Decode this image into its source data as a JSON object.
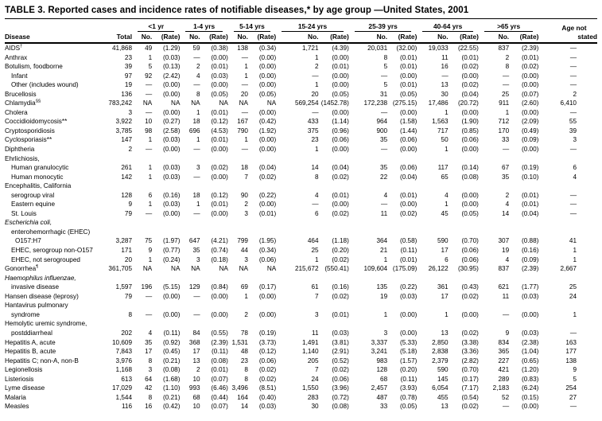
{
  "table": {
    "title": "TABLE 3. Reported cases and incidence rates of notifiable diseases,* by age group —United States, 2001",
    "header": {
      "disease": "Disease",
      "total": "Total",
      "no": "No.",
      "rate": "(Rate)",
      "age_groups": [
        "<1 yr",
        "1-4 yrs",
        "5-14 yrs",
        "15-24 yrs",
        "25-39 yrs",
        "40-64 yrs",
        ">65 yrs"
      ],
      "age_not_line1": "Age not",
      "age_not_line2": "stated"
    },
    "rows": [
      {
        "name": "AIDS",
        "sup": "†",
        "indent": 0,
        "italic": false,
        "cells": [
          "41,868",
          "49",
          "(1.29)",
          "59",
          "(0.38)",
          "138",
          "(0.34)",
          "1,721",
          "(4.39)",
          "20,031",
          "(32.00)",
          "19,033",
          "(22.55)",
          "837",
          "(2.39)",
          "—"
        ]
      },
      {
        "name": "Anthrax",
        "indent": 0,
        "italic": false,
        "cells": [
          "23",
          "1",
          "(0.03)",
          "—",
          "(0.00)",
          "—",
          "(0.00)",
          "1",
          "(0.00)",
          "8",
          "(0.01)",
          "11",
          "(0.01)",
          "2",
          "(0.01)",
          "—"
        ]
      },
      {
        "name": "Botulism, foodborne",
        "indent": 0,
        "italic": false,
        "cells": [
          "39",
          "5",
          "(0.13)",
          "2",
          "(0.01)",
          "1",
          "(0.00)",
          "2",
          "(0.01)",
          "5",
          "(0.01)",
          "16",
          "(0.02)",
          "8",
          "(0.02)",
          "—"
        ]
      },
      {
        "name": "Infant",
        "indent": 1,
        "italic": false,
        "cells": [
          "97",
          "92",
          "(2.42)",
          "4",
          "(0.03)",
          "1",
          "(0.00)",
          "—",
          "(0.00)",
          "—",
          "(0.00)",
          "—",
          "(0.00)",
          "—",
          "(0.00)",
          "—"
        ]
      },
      {
        "name": "Other (includes wound)",
        "indent": 1,
        "italic": false,
        "cells": [
          "19",
          "—",
          "(0.00)",
          "—",
          "(0.00)",
          "—",
          "(0.00)",
          "1",
          "(0.00)",
          "5",
          "(0.01)",
          "13",
          "(0.02)",
          "—",
          "(0.00)",
          "—"
        ]
      },
      {
        "name": "Brucellosis",
        "indent": 0,
        "italic": false,
        "cells": [
          "136",
          "—",
          "(0.00)",
          "8",
          "(0.05)",
          "20",
          "(0.05)",
          "20",
          "(0.05)",
          "31",
          "(0.05)",
          "30",
          "(0.04)",
          "25",
          "(0.07)",
          "2"
        ]
      },
      {
        "name": "Chlamydia",
        "sup": "§§",
        "indent": 0,
        "italic": false,
        "cells": [
          "783,242",
          "NA",
          "NA",
          "NA",
          "NA",
          "NA",
          "NA",
          "569,254",
          "(1452.78)",
          "172,238",
          "(275.15)",
          "17,486",
          "(20.72)",
          "911",
          "(2.60)",
          "6,410"
        ]
      },
      {
        "name": "Cholera",
        "indent": 0,
        "italic": false,
        "cells": [
          "3",
          "—",
          "(0.00)",
          "1",
          "(0.01)",
          "—",
          "(0.00)",
          "—",
          "(0.00)",
          "—",
          "(0.00)",
          "1",
          "(0.00)",
          "1",
          "(0.00)",
          "—"
        ]
      },
      {
        "name": "Coccidioidomycosis**",
        "indent": 0,
        "italic": false,
        "cells": [
          "3,922",
          "10",
          "(0.27)",
          "18",
          "(0.12)",
          "167",
          "(0.42)",
          "433",
          "(1.14)",
          "964",
          "(1.58)",
          "1,563",
          "(1.90)",
          "712",
          "(2.09)",
          "55"
        ]
      },
      {
        "name": "Cryptosporidiosis",
        "indent": 0,
        "italic": false,
        "cells": [
          "3,785",
          "98",
          "(2.58)",
          "696",
          "(4.53)",
          "790",
          "(1.92)",
          "375",
          "(0.96)",
          "900",
          "(1.44)",
          "717",
          "(0.85)",
          "170",
          "(0.49)",
          "39"
        ]
      },
      {
        "name": "Cyclosporiasis**",
        "indent": 0,
        "italic": false,
        "cells": [
          "147",
          "1",
          "(0.03)",
          "1",
          "(0.01)",
          "1",
          "(0.00)",
          "23",
          "(0.06)",
          "35",
          "(0.06)",
          "50",
          "(0.06)",
          "33",
          "(0.09)",
          "3"
        ]
      },
      {
        "name": "Diphtheria",
        "indent": 0,
        "italic": false,
        "cells": [
          "2",
          "—",
          "(0.00)",
          "—",
          "(0.00)",
          "—",
          "(0.00)",
          "1",
          "(0.00)",
          "—",
          "(0.00)",
          "1",
          "(0.00)",
          "—",
          "(0.00)",
          "—"
        ]
      },
      {
        "name": "Ehrlichiosis,",
        "indent": 0,
        "italic": false,
        "cells": []
      },
      {
        "name": "Human granulocytic",
        "indent": 1,
        "italic": false,
        "cells": [
          "261",
          "1",
          "(0.03)",
          "3",
          "(0.02)",
          "18",
          "(0.04)",
          "14",
          "(0.04)",
          "35",
          "(0.06)",
          "117",
          "(0.14)",
          "67",
          "(0.19)",
          "6"
        ]
      },
      {
        "name": "Human  monocytic",
        "indent": 1,
        "italic": false,
        "cells": [
          "142",
          "1",
          "(0.03)",
          "—",
          "(0.00)",
          "7",
          "(0.02)",
          "8",
          "(0.02)",
          "22",
          "(0.04)",
          "65",
          "(0.08)",
          "35",
          "(0.10)",
          "4"
        ]
      },
      {
        "name": "Encephalitis, California",
        "indent": 0,
        "italic": false,
        "cells": []
      },
      {
        "name": "serogroup viral",
        "indent": 1,
        "italic": false,
        "cells": [
          "128",
          "6",
          "(0.16)",
          "18",
          "(0.12)",
          "90",
          "(0.22)",
          "4",
          "(0.01)",
          "4",
          "(0.01)",
          "4",
          "(0.00)",
          "2",
          "(0.01)",
          "—"
        ]
      },
      {
        "name": "Eastern equine",
        "indent": 1,
        "italic": false,
        "cells": [
          "9",
          "1",
          "(0.03)",
          "1",
          "(0.01)",
          "2",
          "(0.00)",
          "—",
          "(0.00)",
          "—",
          "(0.00)",
          "1",
          "(0.00)",
          "4",
          "(0.01)",
          "—"
        ]
      },
      {
        "name": "St. Louis",
        "indent": 1,
        "italic": false,
        "cells": [
          "79",
          "—",
          "(0.00)",
          "—",
          "(0.00)",
          "3",
          "(0.01)",
          "6",
          "(0.02)",
          "11",
          "(0.02)",
          "45",
          "(0.05)",
          "14",
          "(0.04)",
          "—"
        ]
      },
      {
        "name": "Escherichia coli,",
        "indent": 0,
        "italic": true,
        "cells": []
      },
      {
        "name": "enterohemorrhagic (EHEC)",
        "indent": 1,
        "italic": false,
        "cells": []
      },
      {
        "name": "O157:H7",
        "indent": 2,
        "italic": false,
        "cells": [
          "3,287",
          "75",
          "(1.97)",
          "647",
          "(4.21)",
          "799",
          "(1.95)",
          "464",
          "(1.18)",
          "364",
          "(0.58)",
          "590",
          "(0.70)",
          "307",
          "(0.88)",
          "41"
        ]
      },
      {
        "name": "EHEC, serogroup non-O157",
        "indent": 1,
        "italic": false,
        "cells": [
          "171",
          "9",
          "(0.77)",
          "35",
          "(0.74)",
          "44",
          "(0.34)",
          "25",
          "(0.20)",
          "21",
          "(0.11)",
          "17",
          "(0.06)",
          "19",
          "(0.16)",
          "1"
        ]
      },
      {
        "name": "EHEC, not serogrouped",
        "indent": 1,
        "italic": false,
        "cells": [
          "20",
          "1",
          "(0.24)",
          "3",
          "(0.18)",
          "3",
          "(0.06)",
          "1",
          "(0.02)",
          "1",
          "(0.01)",
          "6",
          "(0.06)",
          "4",
          "(0.09)",
          "1"
        ]
      },
      {
        "name": "Gonorrhea",
        "sup": "¶",
        "indent": 0,
        "italic": false,
        "cells": [
          "361,705",
          "NA",
          "NA",
          "NA",
          "NA",
          "NA",
          "NA",
          "215,672",
          "(550.41)",
          "109,604",
          "(175.09)",
          "26,122",
          "(30.95)",
          "837",
          "(2.39)",
          "2,667"
        ]
      },
      {
        "name": "Haemophilus influenzae,",
        "indent": 0,
        "italic": true,
        "cells": []
      },
      {
        "name": "invasive disease",
        "indent": 1,
        "italic": false,
        "cells": [
          "1,597",
          "196",
          "(5.15)",
          "129",
          "(0.84)",
          "69",
          "(0.17)",
          "61",
          "(0.16)",
          "135",
          "(0.22)",
          "361",
          "(0.43)",
          "621",
          "(1.77)",
          "25"
        ]
      },
      {
        "name": "Hansen disease (leprosy)",
        "indent": 0,
        "italic": false,
        "cells": [
          "79",
          "—",
          "(0.00)",
          "—",
          "(0.00)",
          "1",
          "(0.00)",
          "7",
          "(0.02)",
          "19",
          "(0.03)",
          "17",
          "(0.02)",
          "11",
          "(0.03)",
          "24"
        ]
      },
      {
        "name": "Hantavirus pulmonary",
        "indent": 0,
        "italic": false,
        "cells": []
      },
      {
        "name": "syndrome",
        "indent": 1,
        "italic": false,
        "cells": [
          "8",
          "—",
          "(0.00)",
          "—",
          "(0.00)",
          "2",
          "(0.00)",
          "3",
          "(0.01)",
          "1",
          "(0.00)",
          "1",
          "(0.00)",
          "—",
          "(0.00)",
          "1"
        ]
      },
      {
        "name": "Hemolytic uremic syndrome,",
        "indent": 0,
        "italic": false,
        "cells": []
      },
      {
        "name": "postddiarrheal",
        "indent": 1,
        "italic": false,
        "cells": [
          "202",
          "4",
          "(0.11)",
          "84",
          "(0.55)",
          "78",
          "(0.19)",
          "11",
          "(0.03)",
          "3",
          "(0.00)",
          "13",
          "(0.02)",
          "9",
          "(0.03)",
          "—"
        ]
      },
      {
        "name": "Hepatitis A, acute",
        "indent": 0,
        "italic": false,
        "cells": [
          "10,609",
          "35",
          "(0.92)",
          "368",
          "(2.39)",
          "1,531",
          "(3.73)",
          "1,491",
          "(3.81)",
          "3,337",
          "(5.33)",
          "2,850",
          "(3.38)",
          "834",
          "(2.38)",
          "163"
        ]
      },
      {
        "name": "Hepatitis B, acute",
        "indent": 0,
        "italic": false,
        "cells": [
          "7,843",
          "17",
          "(0.45)",
          "17",
          "(0.11)",
          "48",
          "(0.12)",
          "1,140",
          "(2.91)",
          "3,241",
          "(5.18)",
          "2,838",
          "(3.36)",
          "365",
          "(1.04)",
          "177"
        ]
      },
      {
        "name": "Hepatitis C; non-A, non-B",
        "indent": 0,
        "italic": false,
        "cells": [
          "3,976",
          "8",
          "(0.21)",
          "13",
          "(0.08)",
          "23",
          "(0.06)",
          "205",
          "(0.52)",
          "983",
          "(1.57)",
          "2,379",
          "(2.82)",
          "227",
          "(0.65)",
          "138"
        ]
      },
      {
        "name": "Legionellosis",
        "indent": 0,
        "italic": false,
        "cells": [
          "1,168",
          "3",
          "(0.08)",
          "2",
          "(0.01)",
          "8",
          "(0.02)",
          "7",
          "(0.02)",
          "128",
          "(0.20)",
          "590",
          "(0.70)",
          "421",
          "(1.20)",
          "9"
        ]
      },
      {
        "name": "Listeriosis",
        "indent": 0,
        "italic": false,
        "cells": [
          "613",
          "64",
          "(1.68)",
          "10",
          "(0.07)",
          "8",
          "(0.02)",
          "24",
          "(0.06)",
          "68",
          "(0.11)",
          "145",
          "(0.17)",
          "289",
          "(0.83)",
          "5"
        ]
      },
      {
        "name": "Lyme disease",
        "indent": 0,
        "italic": false,
        "cells": [
          "17,029",
          "42",
          "(1.10)",
          "993",
          "(6.46)",
          "3,496",
          "(8.51)",
          "1,550",
          "(3.96)",
          "2,457",
          "(3.93)",
          "6,054",
          "(7.17)",
          "2,183",
          "(6.24)",
          "254"
        ]
      },
      {
        "name": "Malaria",
        "indent": 0,
        "italic": false,
        "cells": [
          "1,544",
          "8",
          "(0.21)",
          "68",
          "(0.44)",
          "164",
          "(0.40)",
          "283",
          "(0.72)",
          "487",
          "(0.78)",
          "455",
          "(0.54)",
          "52",
          "(0.15)",
          "27"
        ]
      },
      {
        "name": "Measles",
        "indent": 0,
        "italic": false,
        "cells": [
          "116",
          "16",
          "(0.42)",
          "10",
          "(0.07)",
          "14",
          "(0.03)",
          "30",
          "(0.08)",
          "33",
          "(0.05)",
          "13",
          "(0.02)",
          "—",
          "(0.00)",
          "—"
        ]
      }
    ]
  }
}
